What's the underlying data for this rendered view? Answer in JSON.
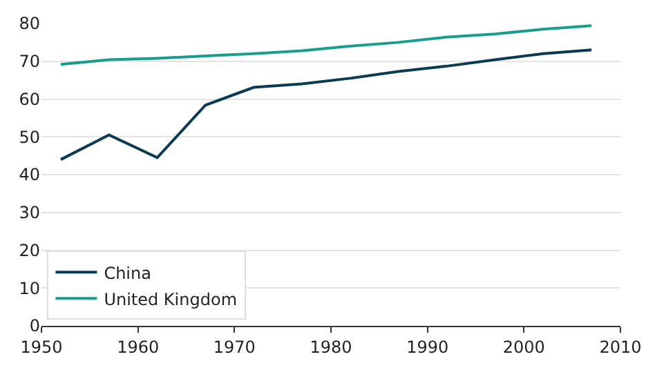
{
  "chart_data": {
    "type": "line",
    "x": [
      1952,
      1957,
      1962,
      1967,
      1972,
      1977,
      1982,
      1987,
      1992,
      1997,
      2002,
      2007
    ],
    "series": [
      {
        "name": "China",
        "color": "#0b3a53",
        "values": [
          44.0,
          50.5,
          44.5,
          58.4,
          63.1,
          64.0,
          65.5,
          67.3,
          68.7,
          70.4,
          72.0,
          73.0
        ]
      },
      {
        "name": "United Kingdom",
        "color": "#1a9c8c",
        "values": [
          69.2,
          70.4,
          70.8,
          71.4,
          72.0,
          72.8,
          74.0,
          75.0,
          76.4,
          77.2,
          78.5,
          79.4
        ]
      }
    ],
    "xlim": [
      1950,
      2010
    ],
    "xticks": [
      1950,
      1960,
      1970,
      1980,
      1990,
      2000,
      2010
    ],
    "ylim": [
      0,
      80
    ],
    "yticks": [
      0,
      10,
      20,
      30,
      40,
      50,
      60,
      70,
      80
    ],
    "grid": "y",
    "legend": "bottom left",
    "marker": "none",
    "line_style": "solid"
  }
}
